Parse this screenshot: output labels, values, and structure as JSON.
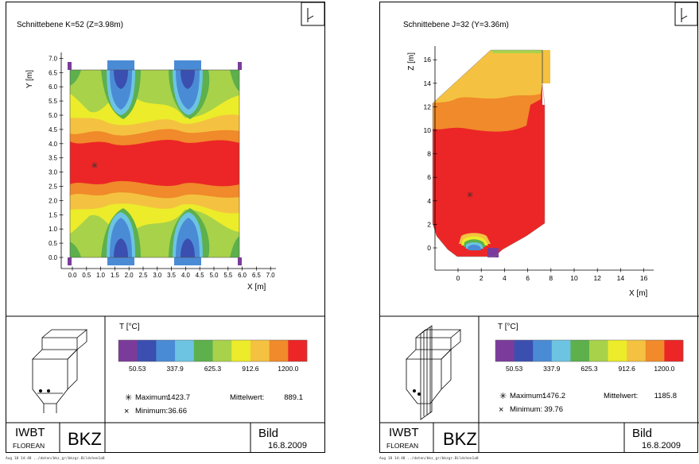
{
  "chart_data": [
    {
      "type": "heatmap",
      "title": "Schnittebene K=52 (Z=3.98m)",
      "xlabel": "X [m]",
      "ylabel": "Y [m]",
      "xlim": [
        0.0,
        7.0
      ],
      "ylim": [
        0.0,
        7.0
      ],
      "x_ticks": [
        "0.0",
        "0.5",
        "1.0",
        "1.5",
        "2.0",
        "2.5",
        "3.0",
        "3.5",
        "4.0",
        "4.5",
        "5.0",
        "5.5",
        "6.0",
        "6.5",
        "7.0"
      ],
      "y_ticks": [
        "0.0",
        "0.5",
        "1.0",
        "1.5",
        "2.0",
        "2.5",
        "3.0",
        "3.5",
        "4.0",
        "4.5",
        "5.0",
        "5.5",
        "6.0",
        "6.5",
        "7.0"
      ],
      "domain": {
        "x": [
          0.0,
          6.0
        ],
        "y": [
          0.0,
          6.6
        ]
      },
      "maximum_location": {
        "x": 1.2,
        "y": 3.25
      },
      "legend": {
        "title": "T [°C]",
        "tick_labels": [
          "50.53",
          "337.9",
          "625.3",
          "912.6",
          "1200.0"
        ],
        "maximum_label": "Maximum:",
        "maximum": "1423.7",
        "mean_label": "Mittelwert:",
        "mean": "889.1",
        "minimum_label": "Minimum:",
        "minimum": "36.66"
      },
      "title_block": {
        "org1": "IWBT",
        "org2": "FLOREAN",
        "name": "BKZ",
        "bild": "Bild",
        "date": "16.8.2009"
      },
      "footnote": "Aug 18 14:48 ../daten/bkz_gr/bkzgr.Bildchen1a8"
    },
    {
      "type": "heatmap",
      "title": "Schnittebene J=32 (Y=3.36m)",
      "xlabel": "X [m]",
      "ylabel": "Z [m]",
      "xlim": [
        -2,
        16
      ],
      "ylim": [
        -2,
        17
      ],
      "x_ticks": [
        "0",
        "2",
        "4",
        "6",
        "8",
        "10",
        "12",
        "14",
        "16"
      ],
      "y_ticks": [
        "0",
        "2",
        "4",
        "6",
        "8",
        "10",
        "12",
        "14",
        "16"
      ],
      "maximum_location": {
        "x": 1.4,
        "y": 4.6
      },
      "legend": {
        "title": "T [°C]",
        "tick_labels": [
          "50.53",
          "337.9",
          "625.3",
          "912.6",
          "1200.0"
        ],
        "maximum_label": "Maximum:",
        "maximum": "1476.2",
        "mean_label": "Mittelwert:",
        "mean": "1185.8",
        "minimum_label": "Minimum:",
        "minimum": "39.76"
      },
      "title_block": {
        "org1": "IWBT",
        "org2": "FLOREAN",
        "name": "BKZ",
        "bild": "Bild",
        "date": "16.8.2009"
      },
      "footnote": "Aug 18 14:48 ../daten/bkz_gr/bkzgr.Bildchen1a8"
    }
  ],
  "colorscale": [
    "#7b3b9b",
    "#3a4fb0",
    "#4a8bd6",
    "#6cc4e2",
    "#5db04c",
    "#a8d24a",
    "#ecec2a",
    "#f4c240",
    "#f08a2a",
    "#ec2626"
  ]
}
